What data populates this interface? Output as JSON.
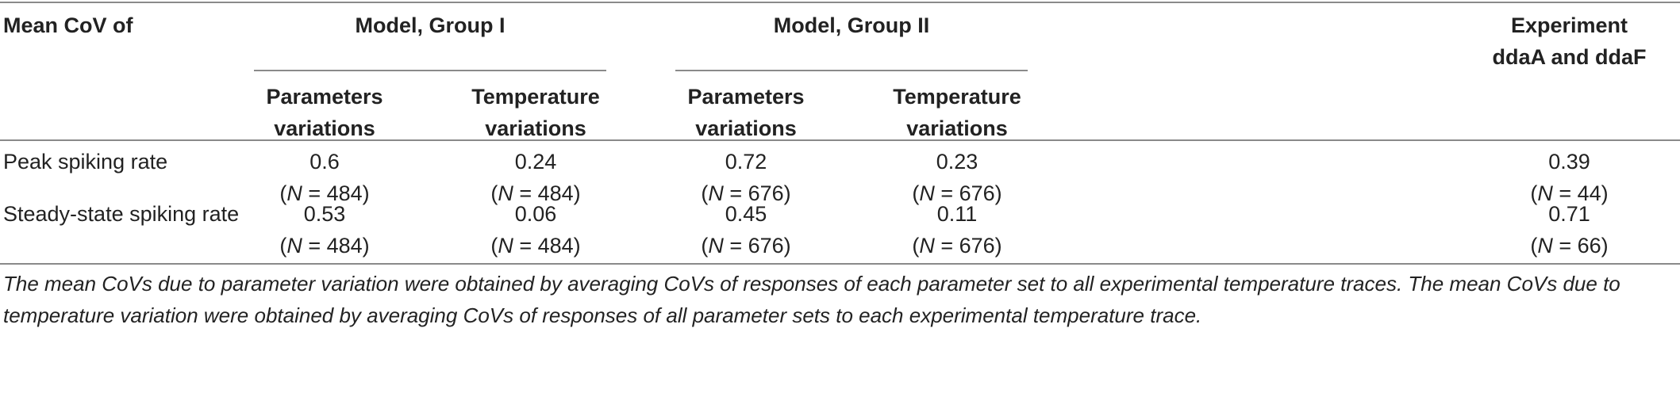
{
  "table": {
    "corner_header": "Mean CoV of",
    "group_headers": [
      "Model, Group I",
      "Model, Group II"
    ],
    "experiment_header": [
      "Experiment",
      "ddaA and ddaF"
    ],
    "sub_headers": [
      [
        "Parameters",
        "variations"
      ],
      [
        "Temperature",
        "variations"
      ],
      [
        "Parameters",
        "variations"
      ],
      [
        "Temperature",
        "variations"
      ]
    ],
    "rows": [
      {
        "label": "Peak spiking rate",
        "cells": [
          {
            "value": "0.6",
            "n": "484"
          },
          {
            "value": "0.24",
            "n": "484"
          },
          {
            "value": "0.72",
            "n": "676"
          },
          {
            "value": "0.23",
            "n": "676"
          },
          {
            "value": "0.39",
            "n": "44"
          }
        ]
      },
      {
        "label": "Steady-state spiking rate",
        "cells": [
          {
            "value": "0.53",
            "n": "484"
          },
          {
            "value": "0.06",
            "n": "484"
          },
          {
            "value": "0.45",
            "n": "676"
          },
          {
            "value": "0.11",
            "n": "676"
          },
          {
            "value": "0.71",
            "n": "66"
          }
        ]
      }
    ],
    "n_prefix": "N",
    "footnote": "The mean CoVs due to parameter variation were obtained by averaging CoVs of responses of each parameter set to all experimental temperature traces. The mean CoVs due to temperature variation were obtained by averaging CoVs of responses of all parameter sets to each experimental temperature trace."
  }
}
